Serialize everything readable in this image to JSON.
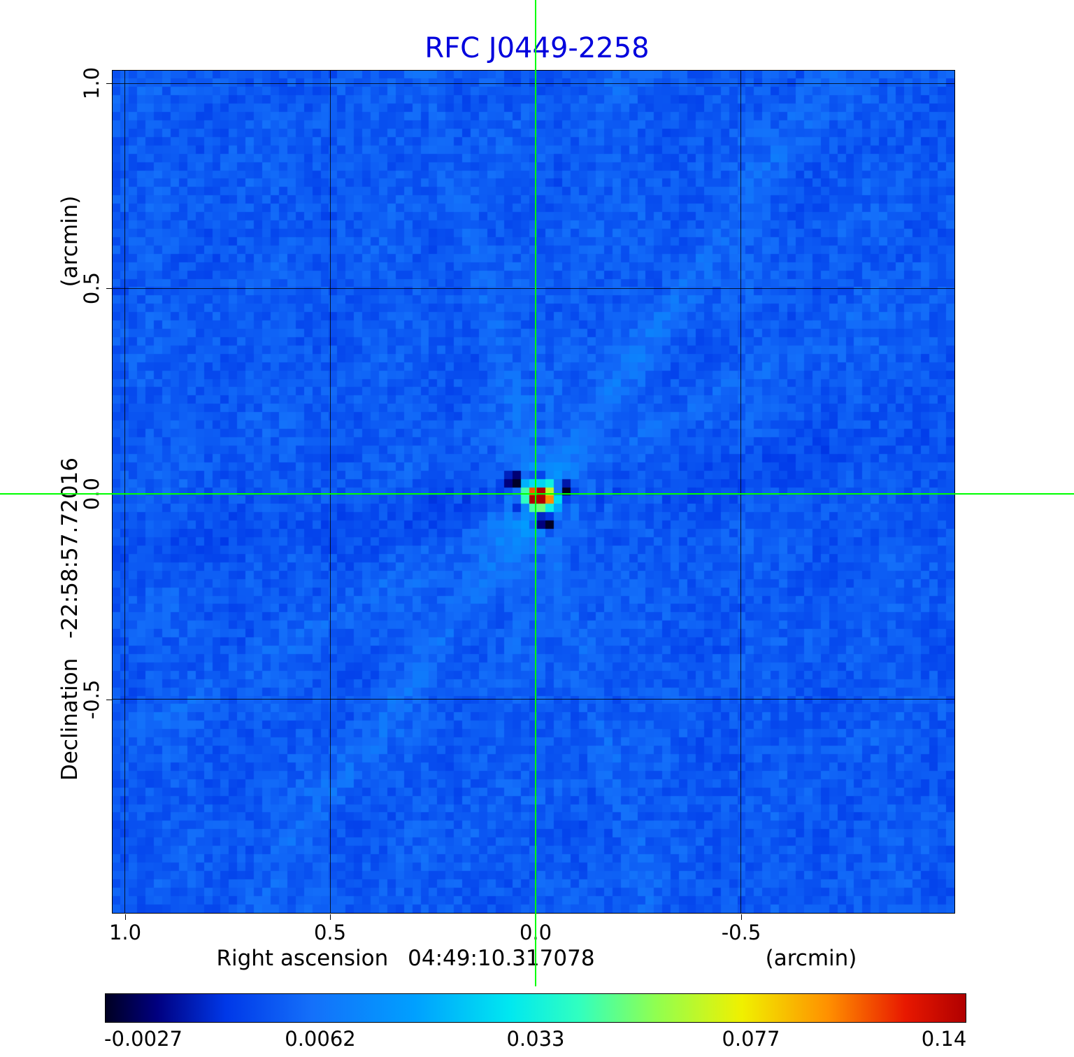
{
  "title": "RFC J0449-2258",
  "title_color": "#0000dd",
  "crosshair_color": "#00ff00",
  "axes": {
    "x": {
      "label": "Right ascension",
      "value": "04:49:10.317078",
      "unit": "(arcmin)",
      "ticks": [
        "1.0",
        "0.5",
        "0.0",
        "-0.5"
      ]
    },
    "y": {
      "label": "Declination",
      "value": "-22:58:57.72016",
      "unit": "(arcmin)",
      "ticks": [
        "1.0",
        "0.5",
        "0.0",
        "-0.5"
      ]
    }
  },
  "colorbar": {
    "tick_labels": [
      "-0.0027",
      "0.0062",
      "0.033",
      "0.077",
      "0.14"
    ]
  },
  "chart_data": {
    "type": "heatmap",
    "title": "RFC J0449-2258",
    "xlabel": "Right ascension 04:49:10.317078 (arcmin)",
    "ylabel": "Declination -22:58:57.72016 (arcmin)",
    "x_range_arcmin": [
      1.03,
      -1.02
    ],
    "y_range_arcmin": [
      1.03,
      -1.02
    ],
    "x_ticks": [
      1.0,
      0.5,
      0.0,
      -0.5
    ],
    "y_ticks": [
      1.0,
      0.5,
      0.0,
      -0.5
    ],
    "grid": true,
    "crosshair_arcmin": [
      0.0,
      0.0
    ],
    "peak": {
      "x_arcmin": 0.0,
      "y_arcmin": 0.0,
      "value": 0.14
    },
    "intensity_scale": {
      "tick_values": [
        -0.0027,
        0.0062,
        0.033,
        0.077,
        0.14
      ],
      "mapping": "nonlinear"
    },
    "colormap": [
      [
        0.0,
        "#000022"
      ],
      [
        0.06,
        "#000080"
      ],
      [
        0.14,
        "#0038e8"
      ],
      [
        0.24,
        "#1470fa"
      ],
      [
        0.36,
        "#00a0ff"
      ],
      [
        0.47,
        "#00e8f0"
      ],
      [
        0.55,
        "#30ffc0"
      ],
      [
        0.64,
        "#90ff50"
      ],
      [
        0.74,
        "#f0f000"
      ],
      [
        0.84,
        "#ff9000"
      ],
      [
        0.93,
        "#e81800"
      ],
      [
        1.0,
        "#b00000"
      ]
    ],
    "render": {
      "grid_n": 101,
      "seed": 20449,
      "background_frac": 0.2,
      "noise_frac": 0.035,
      "center_frac": [
        0.502,
        0.502
      ],
      "source_sigma": 1.3,
      "source_amp": 0.88,
      "halo_sigma": 4.0,
      "halo_amp": 0.07,
      "ripple_amp": 0.05,
      "streaks": [
        {
          "angle_deg": -55,
          "amp": 0.05,
          "width": 1.6
        },
        {
          "angle_deg": -30,
          "amp": 0.028,
          "width": 1.4
        },
        {
          "angle_deg": 75,
          "amp": 0.03,
          "width": 1.3
        },
        {
          "angle_deg": -80,
          "amp": 0.02,
          "width": 1.5
        },
        {
          "angle_deg": -8,
          "amp": -0.028,
          "width": 2.2
        }
      ],
      "negatives": [
        [
          0,
          2
        ],
        [
          0,
          -2
        ],
        [
          -2,
          1
        ],
        [
          3,
          -1
        ],
        [
          -3,
          -2
        ],
        [
          1,
          3
        ]
      ],
      "neg_amp": -0.32
    }
  }
}
